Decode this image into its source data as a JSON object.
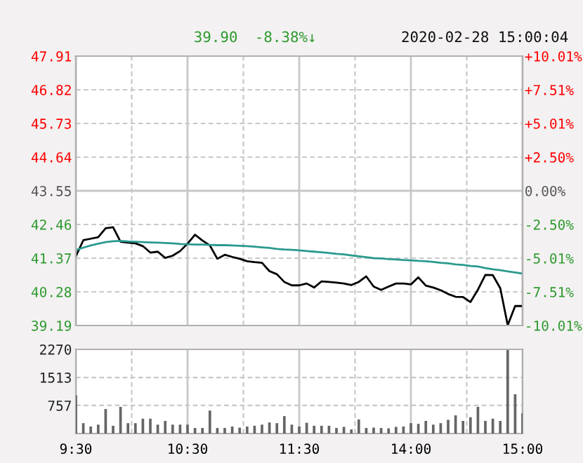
{
  "chart_data": [
    {
      "type": "line",
      "annotations": [
        "39.90",
        "-8.38%↓",
        "2020-02-28 15:00:04"
      ],
      "categories": [
        null,
        null,
        null,
        null,
        null,
        null,
        null,
        null,
        null,
        null,
        null,
        null,
        null,
        null,
        null,
        null,
        null,
        null,
        null,
        null,
        null,
        null,
        null,
        null,
        null,
        null,
        null,
        null,
        null,
        null,
        null,
        null,
        null,
        null,
        null,
        null,
        null,
        null,
        null,
        null,
        null,
        null,
        null,
        null,
        null,
        null,
        null,
        null,
        null,
        null,
        null,
        null,
        null,
        null,
        null,
        null,
        null,
        null,
        null,
        null,
        null
      ],
      "series": [
        {
          "color": "#000000",
          "values": [
            41.43,
            41.95,
            42.0,
            42.05,
            42.34,
            42.37,
            41.9,
            41.87,
            41.85,
            41.76,
            41.55,
            41.58,
            41.38,
            41.45,
            41.6,
            41.84,
            42.13,
            41.94,
            41.78,
            41.35,
            41.48,
            41.41,
            41.35,
            41.27,
            41.24,
            41.22,
            40.95,
            40.85,
            40.6,
            40.49,
            40.49,
            40.55,
            40.42,
            40.62,
            40.6,
            40.58,
            40.55,
            40.5,
            40.6,
            40.78,
            40.45,
            40.34,
            40.45,
            40.55,
            40.55,
            40.52,
            40.75,
            40.48,
            40.42,
            40.33,
            40.21,
            40.12,
            40.11,
            39.95,
            40.35,
            40.83,
            40.82,
            40.4,
            39.2,
            39.82,
            39.82
          ]
        },
        {
          "color": "#2a9a8e",
          "values": [
            41.63,
            41.71,
            41.78,
            41.84,
            41.89,
            41.92,
            41.93,
            41.91,
            41.9,
            41.89,
            41.88,
            41.87,
            41.86,
            41.85,
            41.83,
            41.82,
            41.81,
            41.81,
            41.8,
            41.79,
            41.79,
            41.78,
            41.77,
            41.76,
            41.74,
            41.72,
            41.7,
            41.67,
            41.65,
            41.64,
            41.62,
            41.6,
            41.58,
            41.56,
            41.54,
            41.51,
            41.49,
            41.46,
            41.43,
            41.4,
            41.37,
            41.36,
            41.34,
            41.33,
            41.31,
            41.3,
            41.28,
            41.27,
            41.25,
            41.22,
            41.2,
            41.17,
            41.15,
            41.12,
            41.1,
            41.05,
            41.01,
            40.98,
            40.94,
            40.91,
            40.87
          ]
        }
      ],
      "ylim": [
        39.19,
        47.91
      ],
      "yticks": [
        47.91,
        46.82,
        45.73,
        44.64,
        43.55,
        42.46,
        41.37,
        40.28,
        39.19
      ],
      "y2lim": [
        -10.01,
        10.01
      ],
      "y2ticks": [
        {
          "value": 10.01,
          "label": "+10.01%"
        },
        {
          "value": 7.51,
          "label": "+7.51%"
        },
        {
          "value": 5.01,
          "label": "+5.01%"
        },
        {
          "value": 2.5,
          "label": "+2.50%"
        },
        {
          "value": 0,
          "label": "0.00%"
        },
        {
          "value": -2.5,
          "label": "-2.50%"
        },
        {
          "value": -5.01,
          "label": "-5.01%"
        },
        {
          "value": -7.51,
          "label": "-7.51%"
        },
        {
          "value": -10.01,
          "label": "-10.01%"
        }
      ],
      "grid": true
    },
    {
      "type": "bar",
      "color": "#666666",
      "categories": [
        "9:30",
        null,
        null,
        null,
        null,
        null,
        null,
        null,
        null,
        null,
        null,
        null,
        null,
        null,
        null,
        "10:30",
        null,
        null,
        null,
        null,
        null,
        null,
        null,
        null,
        null,
        null,
        null,
        null,
        null,
        null,
        "11:30",
        null,
        null,
        null,
        null,
        null,
        null,
        null,
        null,
        null,
        null,
        null,
        null,
        null,
        null,
        "14:00",
        null,
        null,
        null,
        null,
        null,
        null,
        null,
        null,
        null,
        null,
        null,
        null,
        null,
        null,
        "15:00"
      ],
      "values": [
        1030,
        280,
        190,
        240,
        660,
        210,
        720,
        280,
        280,
        400,
        400,
        240,
        340,
        240,
        240,
        240,
        150,
        150,
        620,
        150,
        150,
        190,
        160,
        190,
        210,
        240,
        300,
        280,
        470,
        240,
        190,
        290,
        210,
        210,
        210,
        150,
        180,
        110,
        380,
        150,
        160,
        150,
        140,
        180,
        190,
        280,
        260,
        340,
        240,
        280,
        370,
        490,
        340,
        440,
        720,
        340,
        400,
        340,
        2250,
        1060,
        550
      ],
      "ylim": [
        0,
        2270
      ],
      "yticks": [
        757,
        1513,
        2270
      ],
      "grid": true
    }
  ]
}
